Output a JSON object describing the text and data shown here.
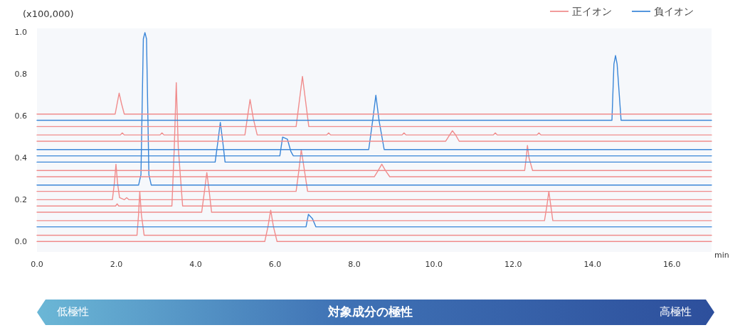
{
  "chart_data": {
    "type": "line",
    "ylabel": "(x100,000)",
    "xlabel": "min",
    "xlim": [
      0,
      17
    ],
    "ylim": [
      -0.05,
      1.02
    ],
    "xticks": [
      {
        "value": 0,
        "label": "0.0"
      },
      {
        "value": 2,
        "label": "2.0"
      },
      {
        "value": 4,
        "label": "4.0"
      },
      {
        "value": 6,
        "label": "6.0"
      },
      {
        "value": 8,
        "label": "8.0"
      },
      {
        "value": 10,
        "label": "10.0"
      },
      {
        "value": 12,
        "label": "12.0"
      },
      {
        "value": 14,
        "label": "14.0"
      },
      {
        "value": 16,
        "label": "16.0"
      }
    ],
    "yticks": [
      {
        "value": 0,
        "label": "0.0"
      },
      {
        "value": 0.2,
        "label": "0.2"
      },
      {
        "value": 0.4,
        "label": "0.4"
      },
      {
        "value": 0.6,
        "label": "0.6"
      },
      {
        "value": 0.8,
        "label": "0.8"
      },
      {
        "value": 1,
        "label": "1.0"
      }
    ],
    "grid": false,
    "legend": "top right",
    "marker": "none",
    "line_style": "solid",
    "annotations": [
      "低極性",
      "対象成分の極性",
      "高極性"
    ],
    "series": [
      {
        "name": "正イオン",
        "color": "#f08c8c",
        "x": [
          0,
          5.74,
          5.82,
          5.89,
          5.96,
          6.05,
          17
        ],
        "values": [
          0,
          0,
          0.07,
          0.15,
          0.07,
          0,
          0
        ]
      },
      {
        "color": "#f08c8c",
        "x": [
          0,
          2.52,
          2.56,
          2.59,
          2.63,
          2.7,
          17
        ],
        "values": [
          0.03,
          0.03,
          0.13,
          0.24,
          0.13,
          0.03,
          0.03
        ]
      },
      {
        "name": "負イオン",
        "color": "#3a86d8",
        "x": [
          0,
          6.78,
          6.84,
          6.94,
          7.03,
          17
        ],
        "values": [
          0.07,
          0.07,
          0.13,
          0.11,
          0.07,
          0.07
        ]
      },
      {
        "color": "#f08c8c",
        "x": [
          0,
          12.79,
          12.85,
          12.9,
          12.95,
          13,
          17
        ],
        "values": [
          0.1,
          0.1,
          0.17,
          0.24,
          0.17,
          0.1,
          0.1
        ]
      },
      {
        "color": "#f08c8c",
        "x": [
          0,
          4.15,
          4.22,
          4.28,
          4.34,
          4.4,
          17
        ],
        "values": [
          0.14,
          0.14,
          0.24,
          0.33,
          0.24,
          0.14,
          0.14
        ]
      },
      {
        "color": "#f08c8c",
        "x": [
          0,
          1.98,
          2.02,
          2.06,
          3.4,
          3.46,
          3.51,
          3.56,
          3.67,
          17
        ],
        "values": [
          0.17,
          0.17,
          0.18,
          0.17,
          0.17,
          0.45,
          0.76,
          0.45,
          0.17,
          0.17
        ]
      },
      {
        "color": "#f08c8c",
        "x": [
          0,
          1.9,
          1.95,
          1.99,
          2.03,
          2.08,
          2.2,
          2.26,
          2.32,
          17
        ],
        "values": [
          0.2,
          0.2,
          0.28,
          0.37,
          0.28,
          0.21,
          0.2,
          0.21,
          0.2,
          0.2
        ]
      },
      {
        "color": "#f08c8c",
        "x": [
          0,
          6.53,
          6.6,
          6.66,
          6.74,
          6.82,
          17
        ],
        "values": [
          0.24,
          0.24,
          0.34,
          0.44,
          0.34,
          0.24,
          0.24
        ]
      },
      {
        "color": "#3a86d8",
        "x": [
          0,
          2.56,
          2.62,
          2.68,
          2.72,
          2.76,
          2.82,
          2.88,
          17
        ],
        "values": [
          0.27,
          0.27,
          0.32,
          0.97,
          1.0,
          0.97,
          0.32,
          0.27,
          0.27
        ]
      },
      {
        "color": "#f08c8c",
        "x": [
          0,
          8.5,
          8.6,
          8.69,
          8.78,
          8.89,
          17
        ],
        "values": [
          0.31,
          0.31,
          0.34,
          0.37,
          0.34,
          0.31,
          0.31
        ]
      },
      {
        "color": "#f08c8c",
        "x": [
          0,
          12.29,
          12.33,
          12.36,
          12.4,
          12.49,
          17
        ],
        "values": [
          0.34,
          0.34,
          0.4,
          0.46,
          0.4,
          0.34,
          0.34
        ]
      },
      {
        "color": "#3a86d8",
        "x": [
          0,
          4.49,
          4.56,
          4.62,
          4.68,
          4.74,
          17
        ],
        "values": [
          0.38,
          0.38,
          0.48,
          0.57,
          0.48,
          0.38,
          0.38
        ]
      },
      {
        "color": "#3a86d8",
        "x": [
          0,
          6.12,
          6.19,
          6.31,
          6.4,
          6.46,
          17
        ],
        "values": [
          0.41,
          0.41,
          0.5,
          0.49,
          0.43,
          0.41,
          0.41
        ]
      },
      {
        "color": "#3a86d8",
        "x": [
          0,
          8.36,
          8.46,
          8.54,
          8.62,
          8.75,
          17
        ],
        "values": [
          0.44,
          0.44,
          0.58,
          0.7,
          0.58,
          0.44,
          0.44
        ]
      },
      {
        "color": "#f08c8c",
        "x": [
          0,
          10.3,
          10.4,
          10.47,
          10.55,
          10.64,
          17
        ],
        "values": [
          0.48,
          0.48,
          0.51,
          0.53,
          0.51,
          0.48,
          0.48
        ]
      },
      {
        "color": "#f08c8c",
        "x": [
          0,
          2.1,
          2.15,
          2.2,
          3.1,
          3.15,
          3.2,
          5.24,
          5.3,
          5.37,
          5.45,
          5.55,
          7.3,
          7.35,
          7.4,
          9.2,
          9.25,
          9.3,
          11.5,
          11.55,
          11.6,
          12.6,
          12.65,
          12.7,
          17
        ],
        "values": [
          0.51,
          0.51,
          0.52,
          0.51,
          0.51,
          0.52,
          0.51,
          0.51,
          0.59,
          0.68,
          0.59,
          0.51,
          0.51,
          0.52,
          0.51,
          0.51,
          0.52,
          0.51,
          0.51,
          0.52,
          0.51,
          0.51,
          0.52,
          0.51,
          0.51
        ]
      },
      {
        "color": "#f08c8c",
        "x": [
          0,
          6.53,
          6.61,
          6.69,
          6.77,
          6.85,
          17
        ],
        "values": [
          0.55,
          0.55,
          0.67,
          0.79,
          0.67,
          0.55,
          0.55
        ]
      },
      {
        "color": "#3a86d8",
        "x": [
          0,
          14.49,
          14.54,
          14.58,
          14.62,
          14.72,
          17
        ],
        "values": [
          0.58,
          0.58,
          0.85,
          0.89,
          0.85,
          0.58,
          0.58
        ]
      },
      {
        "color": "#f08c8c",
        "x": [
          0,
          1.97,
          2.02,
          2.07,
          2.13,
          2.2,
          17
        ],
        "values": [
          0.61,
          0.61,
          0.66,
          0.71,
          0.66,
          0.61,
          0.61
        ]
      }
    ]
  }
}
